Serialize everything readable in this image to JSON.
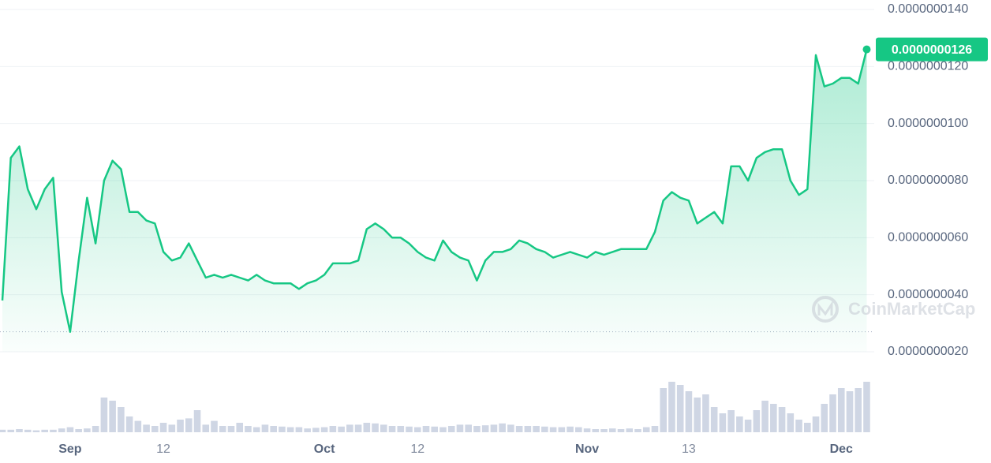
{
  "chart_data": {
    "type": "area-line",
    "color": "#16c784",
    "categories": [
      null,
      null,
      null,
      null,
      null,
      null,
      null,
      null,
      "Sep",
      null,
      null,
      null,
      null,
      null,
      null,
      null,
      null,
      null,
      null,
      "12",
      null,
      null,
      null,
      null,
      null,
      null,
      null,
      null,
      null,
      null,
      null,
      null,
      null,
      null,
      null,
      null,
      null,
      null,
      "Oct",
      null,
      null,
      null,
      null,
      null,
      null,
      null,
      null,
      null,
      null,
      "12",
      null,
      null,
      null,
      null,
      null,
      null,
      null,
      null,
      null,
      null,
      null,
      null,
      null,
      null,
      null,
      null,
      null,
      null,
      null,
      "Nov",
      null,
      null,
      null,
      null,
      null,
      null,
      null,
      null,
      null,
      null,
      null,
      "13",
      null,
      null,
      null,
      null,
      null,
      null,
      null,
      null,
      null,
      null,
      null,
      null,
      null,
      null,
      null,
      null,
      null,
      "Dec",
      null,
      null,
      null
    ],
    "values": [
      3.8e-09,
      8.8e-09,
      9.2e-09,
      7.7e-09,
      7e-09,
      7.7e-09,
      8.1e-09,
      4.1e-09,
      2.7e-09,
      5.2e-09,
      7.4e-09,
      5.8e-09,
      8e-09,
      8.7e-09,
      8.4e-09,
      6.9e-09,
      6.9e-09,
      6.6e-09,
      6.5e-09,
      5.5e-09,
      5.2e-09,
      5.3e-09,
      5.8e-09,
      5.2e-09,
      4.6e-09,
      4.7e-09,
      4.6e-09,
      4.7e-09,
      4.6e-09,
      4.5e-09,
      4.7e-09,
      4.5e-09,
      4.4e-09,
      4.4e-09,
      4.4e-09,
      4.2e-09,
      4.4e-09,
      4.5e-09,
      4.7e-09,
      5.1e-09,
      5.1e-09,
      5.1e-09,
      5.2e-09,
      6.3e-09,
      6.5e-09,
      6.3e-09,
      6e-09,
      6e-09,
      5.8e-09,
      5.5e-09,
      5.3e-09,
      5.2e-09,
      5.9e-09,
      5.5e-09,
      5.3e-09,
      5.2e-09,
      4.5e-09,
      5.2e-09,
      5.5e-09,
      5.5e-09,
      5.6e-09,
      5.9e-09,
      5.8e-09,
      5.6e-09,
      5.5e-09,
      5.3e-09,
      5.4e-09,
      5.5e-09,
      5.4e-09,
      5.3e-09,
      5.5e-09,
      5.4e-09,
      5.5e-09,
      5.6e-09,
      5.6e-09,
      5.6e-09,
      5.6e-09,
      6.2e-09,
      7.3e-09,
      7.6e-09,
      7.4e-09,
      7.3e-09,
      6.5e-09,
      6.7e-09,
      6.9e-09,
      6.5e-09,
      8.5e-09,
      8.5e-09,
      8e-09,
      8.8e-09,
      9e-09,
      9.1e-09,
      9.1e-09,
      8e-09,
      7.5e-09,
      7.7e-09,
      1.24e-08,
      1.13e-08,
      1.14e-08,
      1.16e-08,
      1.16e-08,
      1.14e-08,
      1.26e-08
    ],
    "ylim": [
      2e-09,
      1.4e-08
    ],
    "yticks": [
      {
        "value": 1.4e-08,
        "label": "0.0000000140"
      },
      {
        "value": 1.2e-08,
        "label": "0.0000000120"
      },
      {
        "value": 1e-08,
        "label": "0.0000000100"
      },
      {
        "value": 8e-09,
        "label": "0.0000000080"
      },
      {
        "value": 6e-09,
        "label": "0.0000000060"
      },
      {
        "value": 4e-09,
        "label": "0.0000000040"
      },
      {
        "value": 2e-09,
        "label": "0.0000000020"
      }
    ],
    "grid": true,
    "current_price": {
      "value": 1.26e-08,
      "label": "0.0000000126"
    },
    "volume": {
      "color": "#cfd6e4",
      "ylim": [
        0,
        100
      ],
      "values": [
        4,
        4,
        5,
        4,
        3,
        4,
        4,
        6,
        8,
        5,
        6,
        10,
        55,
        50,
        40,
        25,
        18,
        12,
        10,
        15,
        12,
        20,
        22,
        35,
        12,
        18,
        10,
        10,
        15,
        10,
        8,
        12,
        10,
        9,
        8,
        8,
        6,
        7,
        8,
        10,
        9,
        12,
        12,
        15,
        14,
        12,
        10,
        10,
        9,
        8,
        10,
        9,
        8,
        10,
        12,
        12,
        10,
        11,
        12,
        14,
        12,
        10,
        10,
        10,
        9,
        8,
        8,
        9,
        8,
        6,
        5,
        5,
        6,
        5,
        6,
        5,
        8,
        10,
        70,
        80,
        75,
        65,
        55,
        60,
        40,
        30,
        35,
        25,
        20,
        35,
        50,
        45,
        40,
        30,
        20,
        15,
        25,
        45,
        60,
        70,
        65,
        70,
        80
      ]
    },
    "watermark": "CoinMarketCap"
  }
}
